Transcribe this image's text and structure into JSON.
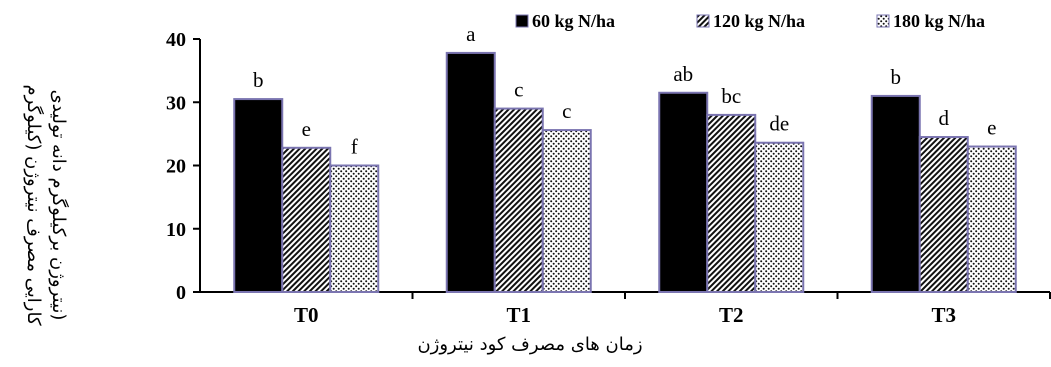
{
  "chart_data": {
    "type": "bar",
    "categories": [
      "T0",
      "T1",
      "T2",
      "T3"
    ],
    "series": [
      {
        "name": "60 kg N/ha",
        "values": [
          30.5,
          37.8,
          31.5,
          31.0
        ],
        "letters": [
          "b",
          "a",
          "ab",
          "b"
        ],
        "pattern": "solid"
      },
      {
        "name": "120 kg N/ha",
        "values": [
          22.8,
          29.0,
          28.0,
          24.5
        ],
        "letters": [
          "e",
          "c",
          "bc",
          "d"
        ],
        "pattern": "stripes"
      },
      {
        "name": "180 kg N/ha",
        "values": [
          20.0,
          25.6,
          23.6,
          23.0
        ],
        "letters": [
          "f",
          "c",
          "de",
          "e"
        ],
        "pattern": "dots"
      }
    ],
    "xlabel": "زمان های مصرف کود نیتروژن",
    "ylabel_line1": "کارایی مصرف نیتروژن (کیلوگرم",
    "ylabel_line2": "نیتروژن برکیلوگرم دانه تولیدی)",
    "ylim": [
      0,
      40
    ],
    "yticks": [
      0,
      10,
      20,
      30,
      40
    ],
    "legend_position": "top-right",
    "grid": false,
    "colors": {
      "bar_fill": "#000000",
      "bar_edge": "#7a74b0",
      "axis": "#000000"
    }
  }
}
